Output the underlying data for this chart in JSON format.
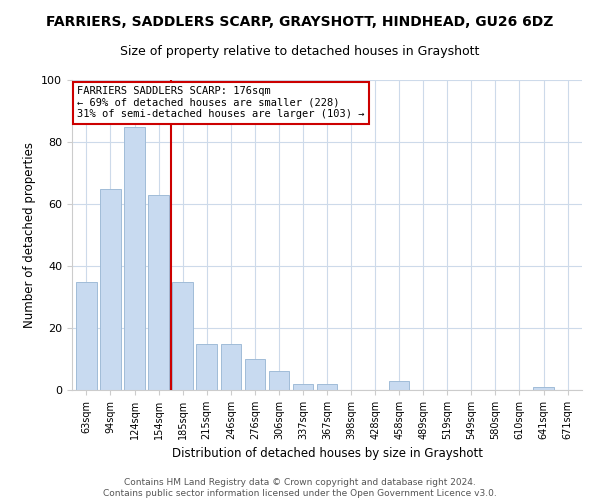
{
  "title": "FARRIERS, SADDLERS SCARP, GRAYSHOTT, HINDHEAD, GU26 6DZ",
  "subtitle": "Size of property relative to detached houses in Grayshott",
  "xlabel": "Distribution of detached houses by size in Grayshott",
  "ylabel": "Number of detached properties",
  "bar_labels": [
    "63sqm",
    "94sqm",
    "124sqm",
    "154sqm",
    "185sqm",
    "215sqm",
    "246sqm",
    "276sqm",
    "306sqm",
    "337sqm",
    "367sqm",
    "398sqm",
    "428sqm",
    "458sqm",
    "489sqm",
    "519sqm",
    "549sqm",
    "580sqm",
    "610sqm",
    "641sqm",
    "671sqm"
  ],
  "bar_values": [
    35,
    65,
    85,
    63,
    35,
    15,
    15,
    10,
    6,
    2,
    2,
    0,
    0,
    3,
    0,
    0,
    0,
    0,
    0,
    1,
    0
  ],
  "bar_color": "#c8daf0",
  "bar_edge_color": "#a0bcd8",
  "vline_color": "#cc0000",
  "vline_xindex": 3.5,
  "annotation_title": "FARRIERS SADDLERS SCARP: 176sqm",
  "annotation_line1": "← 69% of detached houses are smaller (228)",
  "annotation_line2": "31% of semi-detached houses are larger (103) →",
  "annotation_box_edge": "#cc0000",
  "ylim": [
    0,
    100
  ],
  "yticks": [
    0,
    20,
    40,
    60,
    80,
    100
  ],
  "footer1": "Contains HM Land Registry data © Crown copyright and database right 2024.",
  "footer2": "Contains public sector information licensed under the Open Government Licence v3.0."
}
